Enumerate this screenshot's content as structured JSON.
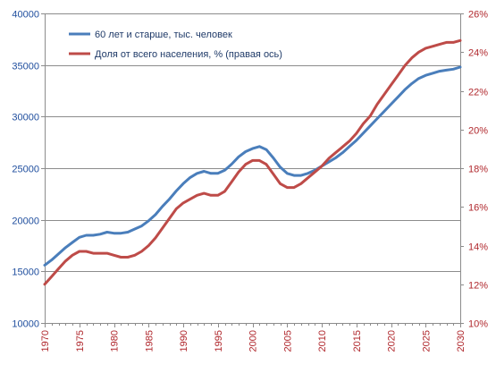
{
  "chart_data": {
    "type": "line",
    "title": "",
    "xlabel": "",
    "ylabel": "",
    "y2label": "",
    "xlim": [
      1970,
      2030
    ],
    "ylim": [
      10000,
      40000
    ],
    "y2lim": [
      10,
      26
    ],
    "xticks": [
      1970,
      1975,
      1980,
      1985,
      1990,
      1995,
      2000,
      2005,
      2010,
      2015,
      2020,
      2025,
      2030
    ],
    "xtick_labels": [
      "1970",
      "1975",
      "1980",
      "1985",
      "1990",
      "1995",
      "2000",
      "2005",
      "2010",
      "2015",
      "2020",
      "2025",
      "2030"
    ],
    "yticks_left": [
      10000,
      15000,
      20000,
      25000,
      30000,
      35000,
      40000
    ],
    "ytick_left_labels": [
      "10000",
      "15000",
      "20000",
      "25000",
      "30000",
      "35000",
      "40000"
    ],
    "yticks_right": [
      10,
      12,
      14,
      16,
      18,
      20,
      22,
      24,
      26
    ],
    "ytick_right_labels": [
      "10%",
      "12%",
      "14%",
      "16%",
      "18%",
      "20%",
      "22%",
      "24%",
      "26%"
    ],
    "grid": true,
    "legend_position": "top-left",
    "x": [
      1970,
      1971,
      1972,
      1973,
      1974,
      1975,
      1976,
      1977,
      1978,
      1979,
      1980,
      1981,
      1982,
      1983,
      1984,
      1985,
      1986,
      1987,
      1988,
      1989,
      1990,
      1991,
      1992,
      1993,
      1994,
      1995,
      1996,
      1997,
      1998,
      1999,
      2000,
      2001,
      2002,
      2003,
      2004,
      2005,
      2006,
      2007,
      2008,
      2009,
      2010,
      2011,
      2012,
      2013,
      2014,
      2015,
      2016,
      2017,
      2018,
      2019,
      2020,
      2021,
      2022,
      2023,
      2024,
      2025,
      2026,
      2027,
      2028,
      2029,
      2030
    ],
    "series": [
      {
        "name": "60 лет и старше, тыс. человек",
        "axis": "left",
        "color": "#4a7ebb",
        "values": [
          15600,
          16100,
          16700,
          17300,
          17800,
          18300,
          18500,
          18500,
          18600,
          18800,
          18700,
          18700,
          18800,
          19100,
          19400,
          19900,
          20500,
          21300,
          22000,
          22800,
          23500,
          24100,
          24500,
          24700,
          24500,
          24500,
          24800,
          25400,
          26100,
          26600,
          26900,
          27100,
          26800,
          26000,
          25100,
          24500,
          24300,
          24300,
          24500,
          24800,
          25200,
          25600,
          26000,
          26500,
          27100,
          27700,
          28400,
          29100,
          29800,
          30500,
          31200,
          31900,
          32600,
          33200,
          33700,
          34000,
          34200,
          34400,
          34500,
          34600,
          34800
        ]
      },
      {
        "name": "Доля от всего населения, % (правая ось)",
        "axis": "right",
        "color": "#be4b48",
        "values": [
          12.0,
          12.4,
          12.8,
          13.2,
          13.5,
          13.7,
          13.7,
          13.6,
          13.6,
          13.6,
          13.5,
          13.4,
          13.4,
          13.5,
          13.7,
          14.0,
          14.4,
          14.9,
          15.4,
          15.9,
          16.2,
          16.4,
          16.6,
          16.7,
          16.6,
          16.6,
          16.8,
          17.3,
          17.8,
          18.2,
          18.4,
          18.4,
          18.2,
          17.7,
          17.2,
          17.0,
          17.0,
          17.2,
          17.5,
          17.8,
          18.1,
          18.5,
          18.8,
          19.1,
          19.4,
          19.8,
          20.3,
          20.7,
          21.3,
          21.8,
          22.3,
          22.8,
          23.3,
          23.7,
          24.0,
          24.2,
          24.3,
          24.4,
          24.5,
          24.5,
          24.6
        ]
      }
    ]
  }
}
